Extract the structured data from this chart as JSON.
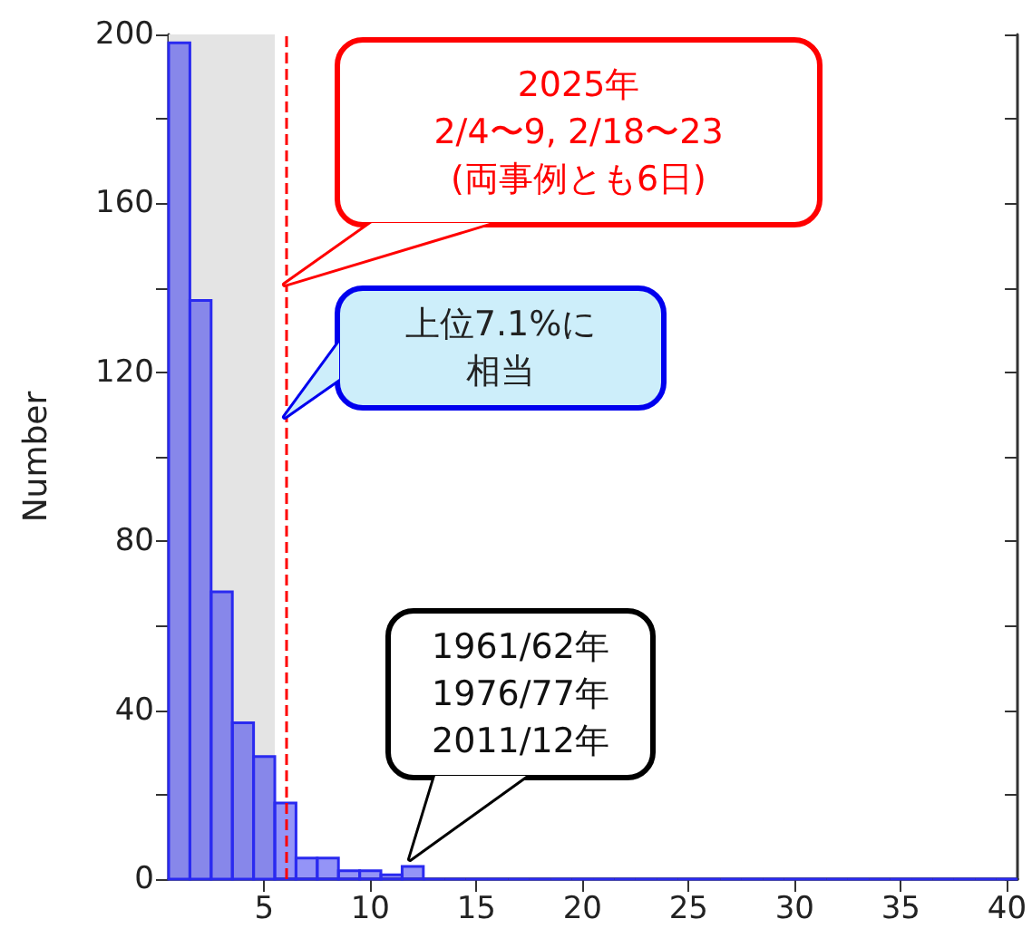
{
  "chart_data": {
    "type": "histogram",
    "ylabel": "Number",
    "bins": [
      0.5,
      1.5,
      2.5,
      3.5,
      4.5,
      5.5,
      6.5,
      7.5,
      8.5,
      9.5,
      10.5,
      11.5,
      12.5,
      13.5,
      14.5,
      15.5,
      16.5,
      17.5,
      18.5,
      19.5,
      20.5,
      21.5,
      22.5,
      23.5,
      24.5,
      25.5,
      26.5,
      27.5,
      28.5,
      29.5,
      30.5,
      31.5,
      32.5,
      33.5,
      34.5,
      35.5,
      36.5,
      37.5,
      38.5,
      39.5,
      40.5
    ],
    "values": [
      198,
      137,
      68,
      37,
      29,
      18,
      5,
      5,
      2,
      2,
      1,
      3,
      0,
      0,
      0,
      0,
      0,
      0,
      0,
      0,
      0,
      0,
      0,
      0,
      0,
      0,
      0,
      0,
      0,
      0,
      0,
      0,
      0,
      0,
      0,
      0,
      0,
      0,
      0,
      0
    ],
    "color": "#2a2af0",
    "xlim": [
      0.5,
      40.5
    ],
    "xticks": [
      5,
      10,
      15,
      20,
      25,
      30,
      35,
      40
    ],
    "ylim": [
      0,
      200
    ],
    "yticks": [
      0,
      {
        "value": 20,
        "label": null
      },
      40,
      {
        "value": 60,
        "label": null
      },
      80,
      {
        "value": 100,
        "label": null
      },
      120,
      {
        "value": 140,
        "label": null
      },
      160,
      {
        "value": 180,
        "label": null
      },
      200
    ],
    "bands": [
      {
        "axis": "x",
        "from": 0.5,
        "to": 5.5,
        "color": "#e4e4e4"
      }
    ],
    "ref_lines": [
      {
        "axis": "x",
        "value": 6,
        "color": "#ff0000",
        "line_style": "dashed"
      }
    ],
    "annotations": [
      "2025年\n2/4〜9, 2/18〜23\n(両事例とも6日)",
      "上位7.1%に相当",
      "1961/62年\n1976/77年\n2011/12年"
    ],
    "grid": false
  }
}
